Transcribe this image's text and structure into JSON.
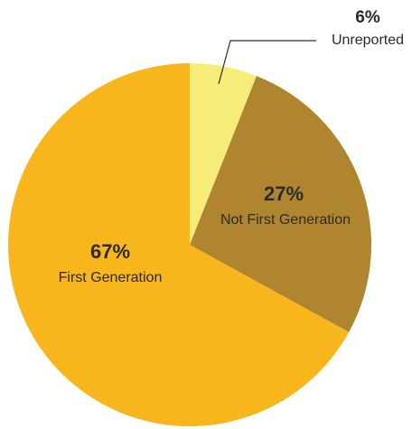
{
  "chart_data": {
    "type": "pie",
    "slices": [
      {
        "label": "Unreported",
        "percent_label": "6%",
        "value": 6,
        "color": "#f7ec78"
      },
      {
        "label": "Not First Generation",
        "percent_label": "27%",
        "value": 27,
        "color": "#b08530"
      },
      {
        "label": "First Generation",
        "percent_label": "67%",
        "value": 67,
        "color": "#f9b51c"
      }
    ],
    "start": "top",
    "direction": "clockwise"
  }
}
